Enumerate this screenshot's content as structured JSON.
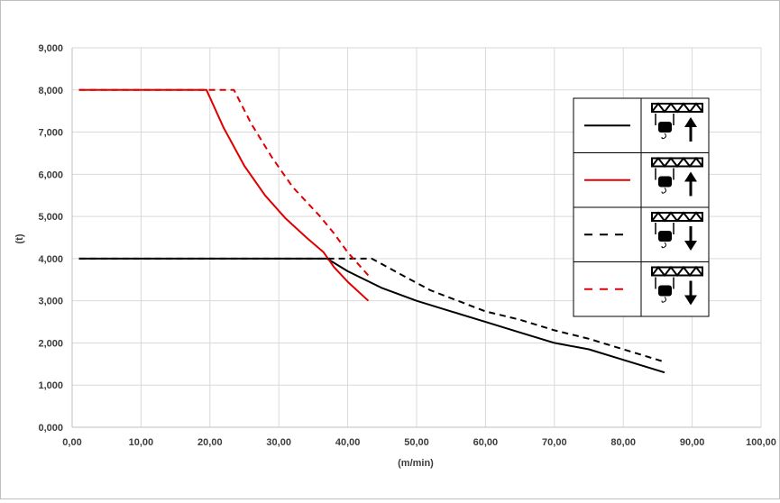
{
  "chart_data": {
    "type": "line",
    "title": "",
    "xlabel": "(m/min)",
    "ylabel": "(t)",
    "xlim": [
      0,
      100
    ],
    "ylim": [
      0,
      9000
    ],
    "x_tick_labels": [
      "0,00",
      "10,00",
      "20,00",
      "30,00",
      "40,00",
      "50,00",
      "60,00",
      "70,00",
      "80,00",
      "90,00",
      "100,00"
    ],
    "y_tick_labels": [
      "0,000",
      "1,000",
      "2,000",
      "3,000",
      "4,000",
      "5,000",
      "6,000",
      "7,000",
      "8,000",
      "9,000"
    ],
    "grid": true,
    "legend_position": "top-right",
    "legend_icons": [
      "hoist-up-icon",
      "hoist-up-icon",
      "hoist-down-icon",
      "hoist-down-icon"
    ],
    "series": [
      {
        "color": "#000000",
        "dash": "solid",
        "points": [
          [
            1,
            4000
          ],
          [
            37,
            4000
          ],
          [
            40,
            3700
          ],
          [
            45,
            3300
          ],
          [
            50,
            3000
          ],
          [
            55,
            2750
          ],
          [
            60,
            2500
          ],
          [
            65,
            2250
          ],
          [
            70,
            2000
          ],
          [
            75,
            1850
          ],
          [
            80,
            1600
          ],
          [
            86,
            1300
          ]
        ]
      },
      {
        "color": "#e00000",
        "dash": "solid",
        "points": [
          [
            1,
            8000
          ],
          [
            19.5,
            8000
          ],
          [
            22,
            7100
          ],
          [
            25,
            6200
          ],
          [
            28,
            5500
          ],
          [
            31,
            4950
          ],
          [
            34,
            4500
          ],
          [
            36.5,
            4150
          ],
          [
            38,
            3800
          ],
          [
            40,
            3450
          ],
          [
            43,
            3000
          ]
        ]
      },
      {
        "color": "#000000",
        "dash": "dashed",
        "points": [
          [
            1,
            4000
          ],
          [
            43.5,
            4000
          ],
          [
            48,
            3600
          ],
          [
            52,
            3250
          ],
          [
            56,
            3000
          ],
          [
            60,
            2750
          ],
          [
            65,
            2550
          ],
          [
            70,
            2300
          ],
          [
            75,
            2100
          ],
          [
            80,
            1850
          ],
          [
            86,
            1550
          ]
        ]
      },
      {
        "color": "#e00000",
        "dash": "dashed",
        "points": [
          [
            1,
            8000
          ],
          [
            23.5,
            8000
          ],
          [
            26,
            7200
          ],
          [
            29,
            6400
          ],
          [
            32,
            5700
          ],
          [
            36,
            5000
          ],
          [
            38,
            4600
          ],
          [
            40,
            4150
          ],
          [
            43,
            3600
          ]
        ]
      }
    ]
  }
}
